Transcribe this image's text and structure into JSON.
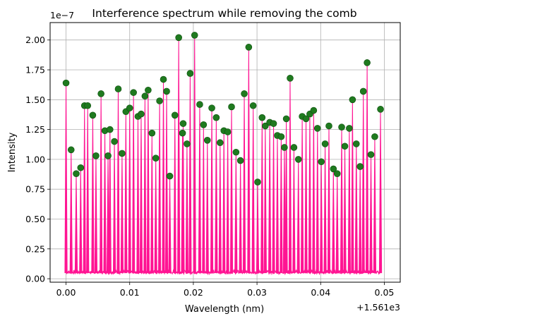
{
  "chart_data": {
    "type": "line",
    "title": "Interference spectrum while removing the comb",
    "xlabel": "Wavelength (nm)",
    "ylabel": "Intensity",
    "x_offset_label": "+1.561e3",
    "y_scale_label": "1e−7",
    "xlim": [
      -0.0025,
      0.0025
    ],
    "ylim": [
      -2.9e-09,
      2.146e-07
    ],
    "x_ticks": [
      0,
      0.01,
      0.02,
      0.03,
      0.04,
      0.05
    ],
    "x_tick_labels": [
      "0.00",
      "0.01",
      "0.02",
      "0.03",
      "0.04",
      "0.05"
    ],
    "y_ticks": [
      0,
      2.5e-08,
      5e-08,
      7.5e-08,
      1e-07,
      1.25e-07,
      1.5e-07,
      1.75e-07,
      2e-07
    ],
    "y_tick_labels": [
      "0.00",
      "0.25",
      "0.50",
      "0.75",
      "1.00",
      "1.25",
      "1.50",
      "1.75",
      "2.00"
    ],
    "grid": true,
    "colors": {
      "spectrum": "#ff1493",
      "peak_fill": "#1f7a1f",
      "peak_edge": "#0b4d0b"
    },
    "series": [
      {
        "kind": "peaks",
        "x": [
          0.0,
          0.0008,
          0.0016,
          0.0023,
          0.0029,
          0.0034,
          0.0042,
          0.0047,
          0.0055,
          0.0061,
          0.0066,
          0.0069,
          0.0076,
          0.0082,
          0.0088,
          0.0094,
          0.01,
          0.0106,
          0.0113,
          0.0118,
          0.0124,
          0.0129,
          0.0135,
          0.0141,
          0.0147,
          0.0153,
          0.0158,
          0.0163,
          0.0171,
          0.0177,
          0.0183,
          0.0184,
          0.019,
          0.0195,
          0.0202,
          0.021,
          0.0216,
          0.0222,
          0.0229,
          0.0236,
          0.0242,
          0.0248,
          0.0254,
          0.026,
          0.0267,
          0.0274,
          0.028,
          0.0287,
          0.0294,
          0.0301,
          0.0308,
          0.0313,
          0.032,
          0.0326,
          0.0332,
          0.0338,
          0.0343,
          0.0346,
          0.0352,
          0.0358,
          0.0365,
          0.0371,
          0.0377,
          0.0383,
          0.0389,
          0.0395,
          0.0401,
          0.0407,
          0.0413,
          0.042,
          0.0426,
          0.0433,
          0.0438,
          0.0445,
          0.045,
          0.0456,
          0.0462,
          0.0467,
          0.0473,
          0.0479,
          0.0485,
          0.0494
        ],
        "y": [
          1.64e-07,
          1.08e-07,
          8.8e-08,
          9.3e-08,
          1.45e-07,
          1.45e-07,
          1.37e-07,
          1.03e-07,
          1.55e-07,
          1.24e-07,
          1.03e-07,
          1.25e-07,
          1.15e-07,
          1.59e-07,
          1.05e-07,
          1.4e-07,
          1.43e-07,
          1.56e-07,
          1.36e-07,
          1.38e-07,
          1.53e-07,
          1.58e-07,
          1.22e-07,
          1.01e-07,
          1.49e-07,
          1.67e-07,
          1.57e-07,
          8.6e-08,
          1.37e-07,
          2.02e-07,
          1.22e-07,
          1.3e-07,
          1.13e-07,
          1.72e-07,
          2.04e-07,
          1.46e-07,
          1.29e-07,
          1.16e-07,
          1.43e-07,
          1.35e-07,
          1.14e-07,
          1.24e-07,
          1.23e-07,
          1.44e-07,
          1.06e-07,
          9.9e-08,
          1.55e-07,
          1.94e-07,
          1.45e-07,
          8.1e-08,
          1.35e-07,
          1.28e-07,
          1.31e-07,
          1.3e-07,
          1.2e-07,
          1.19e-07,
          1.1e-07,
          1.34e-07,
          1.68e-07,
          1.1e-07,
          1e-07,
          1.36e-07,
          1.34e-07,
          1.38e-07,
          1.41e-07,
          1.26e-07,
          9.8e-08,
          1.13e-07,
          1.28e-07,
          9.2e-08,
          8.8e-08,
          1.27e-07,
          1.11e-07,
          1.26e-07,
          1.5e-07,
          1.13e-07,
          9.4e-08,
          1.57e-07,
          1.81e-07,
          1.04e-07,
          1.19e-07,
          1.42e-07
        ]
      },
      {
        "kind": "baseline",
        "value": 5e-09,
        "noise": 3e-09
      }
    ]
  }
}
